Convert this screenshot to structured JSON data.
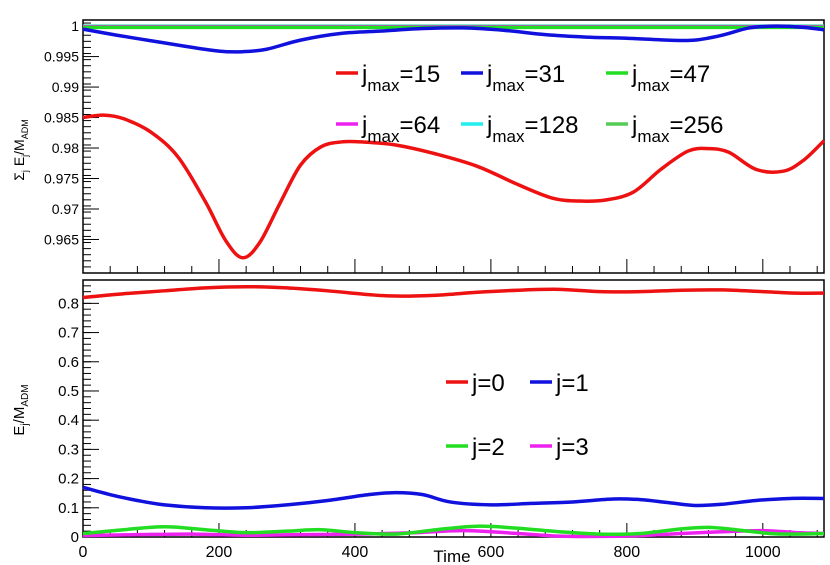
{
  "chart_data": [
    {
      "type": "line",
      "title": "",
      "ylabel_main": "Σ",
      "ylabel_sub": "j",
      "ylabel_rest": " E",
      "ylabel_rest_sub": "j",
      "ylabel_slash": "/M",
      "ylabel_tail_sub": "ADM",
      "xlabel": "",
      "xlim": [
        0,
        1090
      ],
      "ylim": [
        0.9595,
        1.001
      ],
      "yticks": [
        0.965,
        0.97,
        0.975,
        0.98,
        0.985,
        0.99,
        0.995,
        1
      ],
      "ytick_labels": [
        "0.965",
        "0.97",
        "0.975",
        "0.98",
        "0.985",
        "0.99",
        "0.995",
        "1"
      ],
      "legend_position": "upper-right",
      "series": [
        {
          "name_main": "j",
          "name_sub": "max",
          "name_tail": "=15",
          "color": "#ee1111",
          "x": [
            0,
            30,
            60,
            100,
            140,
            180,
            210,
            235,
            260,
            290,
            320,
            350,
            380,
            410,
            460,
            520,
            580,
            640,
            690,
            730,
            770,
            810,
            850,
            890,
            920,
            950,
            990,
            1030,
            1060,
            1090
          ],
          "y": [
            0.985,
            0.9854,
            0.9848,
            0.9826,
            0.9785,
            0.9712,
            0.9648,
            0.962,
            0.9645,
            0.971,
            0.9772,
            0.9802,
            0.981,
            0.981,
            0.9805,
            0.979,
            0.977,
            0.974,
            0.9718,
            0.9713,
            0.9715,
            0.9728,
            0.9765,
            0.9795,
            0.9799,
            0.9793,
            0.9765,
            0.9762,
            0.978,
            0.9812
          ]
        },
        {
          "name_main": "j",
          "name_sub": "max",
          "name_tail": "=31",
          "color": "#1111dd",
          "x": [
            0,
            50,
            100,
            150,
            200,
            235,
            270,
            320,
            380,
            440,
            500,
            560,
            620,
            680,
            740,
            800,
            860,
            900,
            940,
            980,
            1020,
            1060,
            1090
          ],
          "y": [
            0.9995,
            0.9985,
            0.9976,
            0.9967,
            0.9959,
            0.9958,
            0.9962,
            0.9977,
            0.9988,
            0.9992,
            0.9996,
            0.9997,
            0.9993,
            0.9986,
            0.9982,
            0.998,
            0.9977,
            0.9977,
            0.9985,
            0.9997,
            1.0,
            0.9998,
            0.9994
          ]
        },
        {
          "name_main": "j",
          "name_sub": "max",
          "name_tail": "=47",
          "color": "#22dd22",
          "x": [
            0,
            1090
          ],
          "y": [
            0.9998,
            0.9998
          ]
        },
        {
          "name_main": "j",
          "name_sub": "max",
          "name_tail": "=64",
          "color": "#ee22ee",
          "x": [
            0,
            1090
          ],
          "y": [
            0.9999,
            0.9999
          ]
        },
        {
          "name_main": "j",
          "name_sub": "max",
          "name_tail": "=128",
          "color": "#22eeee",
          "x": [
            0,
            1090
          ],
          "y": [
            0.99995,
            0.99995
          ]
        },
        {
          "name_main": "j",
          "name_sub": "max",
          "name_tail": "=256",
          "color": "#55cc55",
          "x": [
            0,
            1090
          ],
          "y": [
            1.0,
            1.0
          ]
        }
      ]
    },
    {
      "type": "line",
      "title": "",
      "ylabel_main": "E",
      "ylabel_sub": "j",
      "ylabel_slash": "/M",
      "ylabel_tail_sub": "ADM",
      "xlabel": "Time",
      "xlim": [
        0,
        1090
      ],
      "ylim": [
        0,
        0.88
      ],
      "xticks": [
        0,
        200,
        400,
        600,
        800,
        1000
      ],
      "xtick_labels": [
        "0",
        "200",
        "400",
        "600",
        "800",
        "1000"
      ],
      "yticks": [
        0,
        0.1,
        0.2,
        0.3,
        0.4,
        0.5,
        0.6,
        0.7,
        0.8
      ],
      "ytick_labels": [
        "0",
        "0.1",
        "0.2",
        "0.3",
        "0.4",
        "0.5",
        "0.6",
        "0.7",
        "0.8"
      ],
      "legend_position": "center-right",
      "series": [
        {
          "name": "j=0",
          "color": "#ee1111",
          "x": [
            0,
            60,
            120,
            180,
            240,
            300,
            360,
            420,
            460,
            520,
            580,
            640,
            700,
            760,
            820,
            880,
            940,
            1000,
            1050,
            1090
          ],
          "y": [
            0.82,
            0.833,
            0.843,
            0.853,
            0.857,
            0.853,
            0.843,
            0.83,
            0.825,
            0.828,
            0.838,
            0.845,
            0.848,
            0.84,
            0.84,
            0.845,
            0.846,
            0.84,
            0.835,
            0.835
          ]
        },
        {
          "name": "j=1",
          "color": "#1111dd",
          "x": [
            0,
            40,
            80,
            120,
            180,
            240,
            300,
            360,
            420,
            460,
            500,
            540,
            600,
            660,
            720,
            780,
            820,
            860,
            900,
            940,
            990,
            1040,
            1090
          ],
          "y": [
            0.17,
            0.145,
            0.125,
            0.11,
            0.1,
            0.1,
            0.11,
            0.125,
            0.145,
            0.152,
            0.145,
            0.12,
            0.11,
            0.115,
            0.12,
            0.13,
            0.128,
            0.118,
            0.108,
            0.112,
            0.125,
            0.132,
            0.132
          ]
        },
        {
          "name": "j=2",
          "color": "#22dd22",
          "x": [
            0,
            60,
            120,
            180,
            240,
            300,
            350,
            400,
            460,
            520,
            580,
            640,
            700,
            760,
            820,
            880,
            920,
            960,
            1010,
            1050,
            1090
          ],
          "y": [
            0.012,
            0.025,
            0.035,
            0.025,
            0.015,
            0.02,
            0.025,
            0.015,
            0.01,
            0.025,
            0.037,
            0.03,
            0.018,
            0.01,
            0.012,
            0.028,
            0.033,
            0.025,
            0.012,
            0.01,
            0.012
          ]
        },
        {
          "name": "j=3",
          "color": "#ee22ee",
          "x": [
            0,
            80,
            160,
            240,
            320,
            400,
            480,
            560,
            640,
            700,
            760,
            820,
            880,
            940,
            1000,
            1050,
            1090
          ],
          "y": [
            0.005,
            0.008,
            0.01,
            0.006,
            0.008,
            0.01,
            0.014,
            0.022,
            0.012,
            0.003,
            0.002,
            0.005,
            0.012,
            0.018,
            0.022,
            0.015,
            0.012
          ]
        }
      ]
    }
  ]
}
